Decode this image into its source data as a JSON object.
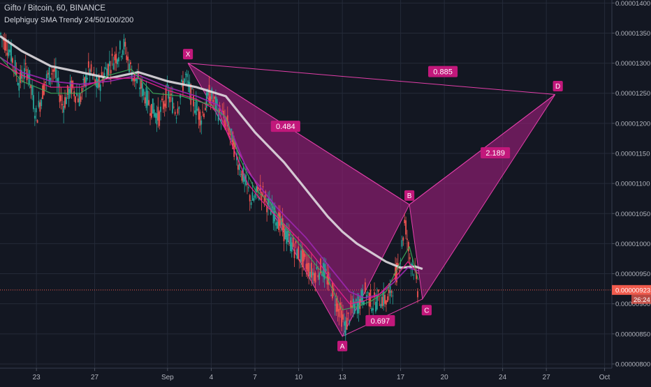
{
  "header": {
    "symbol_line": "Gifto / Bitcoin, 60, BINANCE",
    "indicator_line": "Delphiguy SMA Trendy 24/50/100/200"
  },
  "chart_data": {
    "type": "candlestick",
    "y_axis": {
      "ticks": [
        "0.00001400",
        "0.00001350",
        "0.00001300",
        "0.00001250",
        "0.00001200",
        "0.00001150",
        "0.00001100",
        "0.00001050",
        "0.00001000",
        "0.00000950",
        "0.00000900",
        "0.00000850",
        "0.00000800"
      ],
      "tick_values": [
        14.0,
        13.5,
        13.0,
        12.5,
        12.0,
        11.5,
        11.0,
        10.5,
        10.0,
        9.5,
        9.0,
        8.5,
        8.0
      ],
      "scale_note": "values in 1e-6 BTC",
      "ylim": [
        7.93,
        14.05
      ]
    },
    "x_axis": {
      "ticks": [
        {
          "label": "23",
          "day": 23
        },
        {
          "label": "27",
          "day": 27
        },
        {
          "label": "Sep",
          "day": 32
        },
        {
          "label": "4",
          "day": 35
        },
        {
          "label": "7",
          "day": 38
        },
        {
          "label": "10",
          "day": 41
        },
        {
          "label": "13",
          "day": 44
        },
        {
          "label": "17",
          "day": 48
        },
        {
          "label": "20",
          "day": 51
        },
        {
          "label": "24",
          "day": 55
        },
        {
          "label": "27",
          "day": 58
        },
        {
          "label": "Oct",
          "day": 62
        }
      ],
      "xlim": [
        20.5,
        62.5
      ]
    },
    "current_price": {
      "label": "0.00000923",
      "value": 9.23,
      "countdown": "26:24",
      "color": "#f05b4d"
    },
    "price_path": [
      [
        20.5,
        13.5
      ],
      [
        21.2,
        13.2
      ],
      [
        21.8,
        12.7
      ],
      [
        22.4,
        12.9
      ],
      [
        23.0,
        12.1
      ],
      [
        23.6,
        12.7
      ],
      [
        24.2,
        12.9
      ],
      [
        24.8,
        12.3
      ],
      [
        25.4,
        12.6
      ],
      [
        26.0,
        12.4
      ],
      [
        26.6,
        12.9
      ],
      [
        27.2,
        12.6
      ],
      [
        27.8,
        12.9
      ],
      [
        28.4,
        13.1
      ],
      [
        29.0,
        13.3
      ],
      [
        29.6,
        12.8
      ],
      [
        30.2,
        12.6
      ],
      [
        30.8,
        12.3
      ],
      [
        31.4,
        12.1
      ],
      [
        32.0,
        12.5
      ],
      [
        32.6,
        12.2
      ],
      [
        33.2,
        12.8
      ],
      [
        33.7,
        12.4
      ],
      [
        34.3,
        12.1
      ],
      [
        34.9,
        12.5
      ],
      [
        35.5,
        12.2
      ],
      [
        36.1,
        12.0
      ],
      [
        36.7,
        11.5
      ],
      [
        37.2,
        11.1
      ],
      [
        37.8,
        10.7
      ],
      [
        38.4,
        10.9
      ],
      [
        39.0,
        10.6
      ],
      [
        39.6,
        10.4
      ],
      [
        40.2,
        10.1
      ],
      [
        40.8,
        9.9
      ],
      [
        41.4,
        9.7
      ],
      [
        42.0,
        9.5
      ],
      [
        42.6,
        9.6
      ],
      [
        43.2,
        9.3
      ],
      [
        43.8,
        8.9
      ],
      [
        44.2,
        8.6
      ],
      [
        44.6,
        8.9
      ],
      [
        45.1,
        9.0
      ],
      [
        45.6,
        9.2
      ],
      [
        46.1,
        9.0
      ],
      [
        46.6,
        9.1
      ],
      [
        47.1,
        9.05
      ],
      [
        47.6,
        9.4
      ],
      [
        48.0,
        9.8
      ],
      [
        48.3,
        10.4
      ],
      [
        48.6,
        9.8
      ],
      [
        48.9,
        9.6
      ],
      [
        49.2,
        9.2
      ]
    ],
    "moving_averages": [
      {
        "name": "SMA 200",
        "color": "#e0dce0",
        "width": 3.2,
        "points": [
          [
            20.5,
            13.45
          ],
          [
            22,
            13.2
          ],
          [
            24,
            12.95
          ],
          [
            26,
            12.85
          ],
          [
            28,
            12.75
          ],
          [
            30,
            12.85
          ],
          [
            32,
            12.7
          ],
          [
            34,
            12.6
          ],
          [
            36,
            12.45
          ],
          [
            37,
            12.15
          ],
          [
            38,
            11.85
          ],
          [
            39,
            11.6
          ],
          [
            40,
            11.35
          ],
          [
            41,
            11.05
          ],
          [
            42,
            10.75
          ],
          [
            43,
            10.45
          ],
          [
            44,
            10.2
          ],
          [
            45,
            10.0
          ],
          [
            46,
            9.85
          ],
          [
            47,
            9.7
          ],
          [
            48,
            9.6
          ],
          [
            49,
            9.62
          ],
          [
            49.5,
            9.58
          ]
        ]
      },
      {
        "name": "SMA 100",
        "color": "#9c27b0",
        "width": 1.8,
        "points": [
          [
            20.5,
            13.1
          ],
          [
            22,
            12.85
          ],
          [
            24,
            12.7
          ],
          [
            26,
            12.65
          ],
          [
            28,
            12.7
          ],
          [
            30,
            12.8
          ],
          [
            32,
            12.6
          ],
          [
            34,
            12.45
          ],
          [
            35.5,
            12.3
          ],
          [
            36.5,
            11.8
          ],
          [
            37.5,
            11.2
          ],
          [
            38.5,
            10.9
          ],
          [
            39.5,
            10.6
          ],
          [
            40.5,
            10.35
          ],
          [
            41.5,
            10.1
          ],
          [
            42.5,
            9.8
          ],
          [
            43.5,
            9.5
          ],
          [
            44.5,
            9.2
          ],
          [
            45.5,
            9.1
          ],
          [
            46.5,
            9.15
          ],
          [
            47.5,
            9.35
          ],
          [
            48.5,
            9.6
          ],
          [
            49.2,
            9.55
          ]
        ]
      },
      {
        "name": "SMA 50",
        "color": "#e91e8c",
        "width": 1.4,
        "points": [
          [
            20.5,
            13.0
          ],
          [
            22,
            12.8
          ],
          [
            24,
            12.6
          ],
          [
            26,
            12.6
          ],
          [
            28,
            12.75
          ],
          [
            30,
            12.75
          ],
          [
            32,
            12.55
          ],
          [
            34,
            12.4
          ],
          [
            35.5,
            12.2
          ],
          [
            36.5,
            11.6
          ],
          [
            37.5,
            11.0
          ],
          [
            38.5,
            10.7
          ],
          [
            39.5,
            10.45
          ],
          [
            40.5,
            10.2
          ],
          [
            41.5,
            9.95
          ],
          [
            42.5,
            9.65
          ],
          [
            43.5,
            9.3
          ],
          [
            44.5,
            9.0
          ],
          [
            45.5,
            9.05
          ],
          [
            46.5,
            9.15
          ],
          [
            47.5,
            9.4
          ],
          [
            48.5,
            9.7
          ],
          [
            49.2,
            9.5
          ]
        ]
      },
      {
        "name": "SMA 24",
        "color": "#3fae5a",
        "width": 1.2,
        "points": [
          [
            20.5,
            13.1
          ],
          [
            22,
            12.7
          ],
          [
            24,
            12.5
          ],
          [
            26,
            12.5
          ],
          [
            28,
            12.8
          ],
          [
            29.5,
            12.9
          ],
          [
            31,
            12.5
          ],
          [
            33,
            12.45
          ],
          [
            35,
            12.3
          ],
          [
            36,
            12.1
          ],
          [
            37,
            11.4
          ],
          [
            38,
            10.9
          ],
          [
            39,
            10.7
          ],
          [
            40,
            10.3
          ],
          [
            41,
            10.0
          ],
          [
            42,
            9.7
          ],
          [
            43,
            9.4
          ],
          [
            44,
            8.9
          ],
          [
            45,
            8.95
          ],
          [
            46,
            9.05
          ],
          [
            47,
            9.2
          ],
          [
            48,
            9.7
          ],
          [
            48.6,
            9.95
          ],
          [
            49.2,
            9.4
          ]
        ]
      }
    ],
    "harmonic_pattern": {
      "fill_color": "#9c1f7a",
      "line_color": "#e23fa9",
      "points": [
        {
          "label": "X",
          "x": 33.4,
          "y": 13.0
        },
        {
          "label": "A",
          "x": 44.0,
          "y": 8.46
        },
        {
          "label": "B",
          "x": 48.6,
          "y": 10.65
        },
        {
          "label": "C",
          "x": 49.5,
          "y": 9.08
        },
        {
          "label": "D",
          "x": 58.6,
          "y": 12.48
        }
      ],
      "ratios": [
        {
          "label": "0.885",
          "x": 50.9,
          "y": 12.86
        },
        {
          "label": "0.484",
          "x": 40.1,
          "y": 11.95
        },
        {
          "label": "2.189",
          "x": 54.5,
          "y": 11.51
        },
        {
          "label": "0.697",
          "x": 46.6,
          "y": 8.72
        }
      ]
    }
  }
}
